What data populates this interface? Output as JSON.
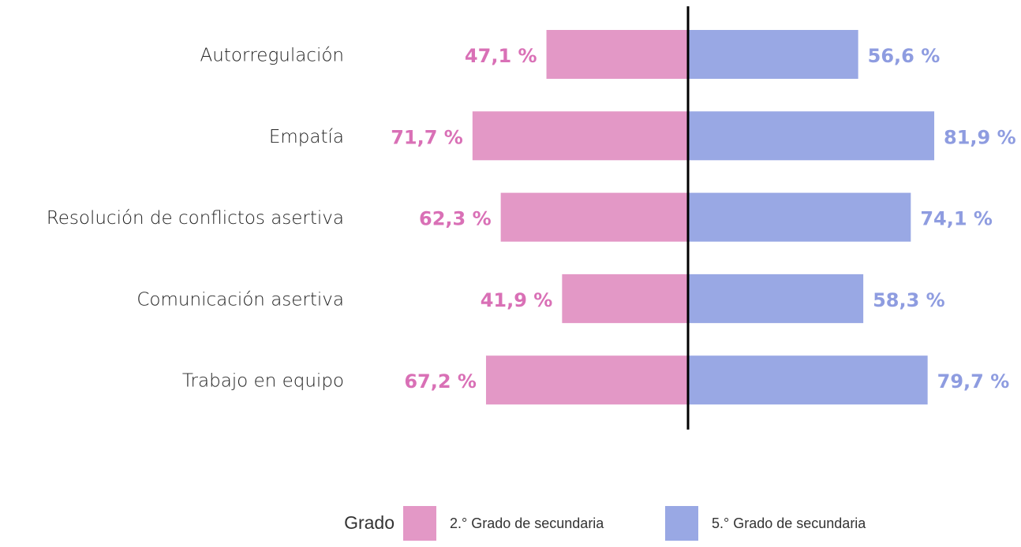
{
  "chart_data": {
    "type": "diverging_bar",
    "categories": [
      "Autorregulación",
      "Empatía",
      "Resolución de conflictos asertiva",
      "Comunicación asertiva",
      "Trabajo en equipo"
    ],
    "series": [
      {
        "name": "2.° Grado de secundaria",
        "color": "#e398c6",
        "label_color": "#d970b6",
        "values": [
          47.1,
          71.7,
          62.3,
          41.9,
          67.2
        ],
        "value_labels": [
          "47,1 %",
          "71,7 %",
          "62,3 %",
          "41,9 %",
          "67,2 %"
        ]
      },
      {
        "name": "5.° Grado de secundaria",
        "color": "#99a8e4",
        "label_color": "#8e9ce0",
        "values": [
          56.6,
          81.9,
          74.1,
          58.3,
          79.7
        ],
        "value_labels": [
          "56,6 %",
          "81,9 %",
          "74,1 %",
          "58,3 %",
          "79,7 %"
        ]
      }
    ],
    "legend_title": "Grado"
  }
}
